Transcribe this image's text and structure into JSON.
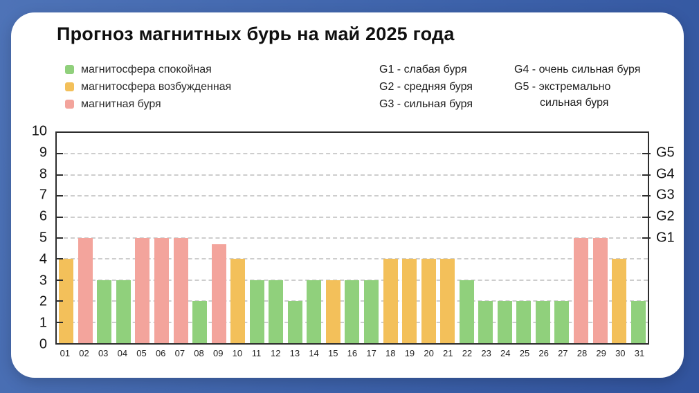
{
  "title": "Прогноз магнитных бурь на май 2025 года",
  "colors": {
    "background_start": "#4e73b7",
    "background_end": "#32549e",
    "card": "#ffffff",
    "calm": "#90d07c",
    "excited": "#f3c05a",
    "storm": "#f3a49c",
    "grid": "#cdcdcd",
    "axis": "#2d2d2d"
  },
  "legend": {
    "items": [
      {
        "label": "магнитосфера спокойная",
        "status": "calm",
        "color": "#90d07c"
      },
      {
        "label": "магнитосфера возбужденная",
        "status": "excited",
        "color": "#f3c05a"
      },
      {
        "label": "магнитная буря",
        "status": "storm",
        "color": "#f3a49c"
      }
    ]
  },
  "gnotes": {
    "col1": [
      "G1 - слабая буря",
      "G2 - средняя буря",
      "G3 - сильная буря"
    ],
    "g4": "G4 - очень сильная буря",
    "g5_line1": "G5 - экстремально",
    "g5_line2": "сильная буря"
  },
  "chart_data": {
    "type": "bar",
    "title": "Прогноз магнитных бурь на май 2025 года",
    "categories": [
      "01",
      "02",
      "03",
      "04",
      "05",
      "06",
      "07",
      "08",
      "09",
      "10",
      "11",
      "12",
      "13",
      "14",
      "15",
      "16",
      "17",
      "18",
      "19",
      "20",
      "21",
      "22",
      "23",
      "24",
      "25",
      "26",
      "27",
      "28",
      "29",
      "30",
      "31"
    ],
    "values": [
      4,
      5,
      3,
      3,
      5,
      5,
      5,
      2,
      4.7,
      4,
      3,
      3,
      2,
      3,
      3,
      3,
      3,
      4,
      4,
      4,
      4,
      3,
      2,
      2,
      2,
      2,
      2,
      5,
      5,
      4,
      2
    ],
    "statuses": [
      "excited",
      "storm",
      "calm",
      "calm",
      "storm",
      "storm",
      "storm",
      "calm",
      "storm",
      "excited",
      "calm",
      "calm",
      "calm",
      "calm",
      "excited",
      "calm",
      "calm",
      "excited",
      "excited",
      "excited",
      "excited",
      "calm",
      "calm",
      "calm",
      "calm",
      "calm",
      "calm",
      "storm",
      "storm",
      "excited",
      "calm"
    ],
    "xlabel": "",
    "ylabel": "",
    "ylim": [
      0,
      10
    ],
    "yticks": [
      0,
      1,
      2,
      3,
      4,
      5,
      6,
      7,
      8,
      9,
      10
    ],
    "gridlines_at": [
      1,
      2,
      3,
      4,
      5,
      6,
      7,
      8,
      9
    ],
    "right_axis_labels": [
      {
        "label": "G1",
        "level": 5
      },
      {
        "label": "G2",
        "level": 6
      },
      {
        "label": "G3",
        "level": 7
      },
      {
        "label": "G4",
        "level": 8
      },
      {
        "label": "G5",
        "level": 9
      }
    ],
    "grid": "horizontal-dashed",
    "legend_position": "top-left"
  }
}
